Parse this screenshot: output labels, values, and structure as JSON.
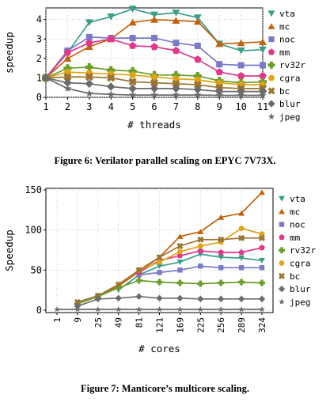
{
  "chart_data": [
    {
      "type": "line",
      "caption": "Figure 6: Verilator parallel scaling on EPYC 7V73X.",
      "xlabel": "# threads",
      "ylabel": "speedup",
      "x": [
        1,
        2,
        3,
        4,
        5,
        6,
        7,
        8,
        9,
        10,
        11
      ],
      "xticks": [
        "1",
        "2",
        "3",
        "4",
        "5",
        "6",
        "7",
        "8",
        "9",
        "10",
        "11"
      ],
      "ylim": [
        0,
        4.6
      ],
      "yticks": [
        "0",
        "1",
        "2",
        "3",
        "4"
      ],
      "grid": true,
      "legend_position": "right",
      "series": [
        {
          "name": "vta",
          "color": "#3a9e87",
          "marker": "tri-down",
          "values": [
            1.0,
            2.3,
            3.85,
            4.15,
            4.55,
            4.25,
            4.35,
            4.1,
            2.75,
            2.4,
            2.45
          ]
        },
        {
          "name": "mc",
          "color": "#c4620c",
          "marker": "tri-up",
          "values": [
            1.0,
            2.0,
            2.6,
            3.0,
            3.85,
            4.0,
            3.95,
            3.9,
            2.75,
            2.8,
            2.85
          ]
        },
        {
          "name": "noc",
          "color": "#7a7ac8",
          "marker": "square",
          "values": [
            1.0,
            2.4,
            3.1,
            3.05,
            3.05,
            3.05,
            2.8,
            2.65,
            1.7,
            1.65,
            1.65
          ]
        },
        {
          "name": "mm",
          "color": "#e0398a",
          "marker": "pentagon",
          "values": [
            1.0,
            2.3,
            2.8,
            3.0,
            2.65,
            2.6,
            2.4,
            1.95,
            1.3,
            1.1,
            1.1
          ]
        },
        {
          "name": "rv32r",
          "color": "#6a9e2a",
          "marker": "plus",
          "values": [
            1.0,
            1.5,
            1.55,
            1.4,
            1.35,
            1.15,
            1.15,
            1.1,
            0.85,
            0.75,
            0.8
          ]
        },
        {
          "name": "cgra",
          "color": "#dfa413",
          "marker": "circle",
          "values": [
            1.0,
            1.3,
            1.25,
            1.2,
            1.15,
            1.05,
            0.95,
            0.9,
            0.75,
            0.65,
            0.65
          ]
        },
        {
          "name": "bc",
          "color": "#9b7433",
          "marker": "x",
          "values": [
            1.0,
            1.05,
            1.05,
            1.0,
            0.8,
            0.75,
            0.7,
            0.65,
            0.5,
            0.45,
            0.45
          ]
        },
        {
          "name": "blur",
          "color": "#6b6b6b",
          "marker": "diamond",
          "values": [
            1.0,
            0.75,
            0.7,
            0.55,
            0.45,
            0.45,
            0.45,
            0.4,
            0.3,
            0.3,
            0.3
          ]
        },
        {
          "name": "jpeg",
          "color": "#6b6b6b",
          "marker": "star",
          "values": [
            1.0,
            0.45,
            0.2,
            0.15,
            0.12,
            0.12,
            0.12,
            0.12,
            0.1,
            0.1,
            0.1
          ]
        }
      ]
    },
    {
      "type": "line",
      "caption": "Figure 7: Manticore’s multicore scaling.",
      "xlabel": "# cores",
      "ylabel": "Speedup",
      "x": [
        1,
        9,
        25,
        49,
        81,
        121,
        169,
        225,
        256,
        289,
        324
      ],
      "xticks": [
        "1",
        "9",
        "25",
        "49",
        "81",
        "121",
        "169",
        "225",
        "256",
        "289",
        "324"
      ],
      "ylim": [
        -3,
        152
      ],
      "yticks": [
        "0",
        "50",
        "100",
        "150"
      ],
      "grid": true,
      "legend_position": "right",
      "series": [
        {
          "name": "vta",
          "color": "#3a9e87",
          "marker": "tri-down",
          "values": [
            null,
            null,
            null,
            25,
            44,
            55,
            60,
            70,
            66,
            65,
            62
          ]
        },
        {
          "name": "mc",
          "color": "#c4620c",
          "marker": "tri-up",
          "values": [
            null,
            8,
            18,
            30,
            48,
            66,
            92,
            98,
            116,
            121,
            147
          ]
        },
        {
          "name": "noc",
          "color": "#7a7ac8",
          "marker": "square",
          "values": [
            null,
            null,
            null,
            null,
            44,
            47,
            50,
            55,
            53,
            53,
            53
          ]
        },
        {
          "name": "mm",
          "color": "#e0398a",
          "marker": "pentagon",
          "values": [
            null,
            null,
            null,
            null,
            47,
            62,
            68,
            74,
            72,
            72,
            78
          ]
        },
        {
          "name": "rv32r",
          "color": "#6a9e2a",
          "marker": "plus",
          "values": [
            null,
            8,
            17,
            28,
            37,
            35,
            34,
            33,
            34,
            35,
            34
          ]
        },
        {
          "name": "cgra",
          "color": "#dfa413",
          "marker": "circle",
          "values": [
            null,
            null,
            null,
            null,
            50,
            60,
            73,
            80,
            85,
            102,
            95
          ]
        },
        {
          "name": "bc",
          "color": "#9b7433",
          "marker": "x",
          "values": [
            null,
            10,
            18,
            32,
            50,
            66,
            80,
            88,
            88,
            90,
            90
          ]
        },
        {
          "name": "blur",
          "color": "#6b6b6b",
          "marker": "diamond",
          "values": [
            null,
            5,
            14,
            15,
            17,
            15,
            15,
            14,
            14,
            14,
            14
          ]
        },
        {
          "name": "jpeg",
          "color": "#6b6b6b",
          "marker": "star",
          "values": [
            1,
            1,
            1,
            1,
            1,
            1,
            1,
            1,
            1,
            1,
            1
          ]
        }
      ]
    }
  ]
}
